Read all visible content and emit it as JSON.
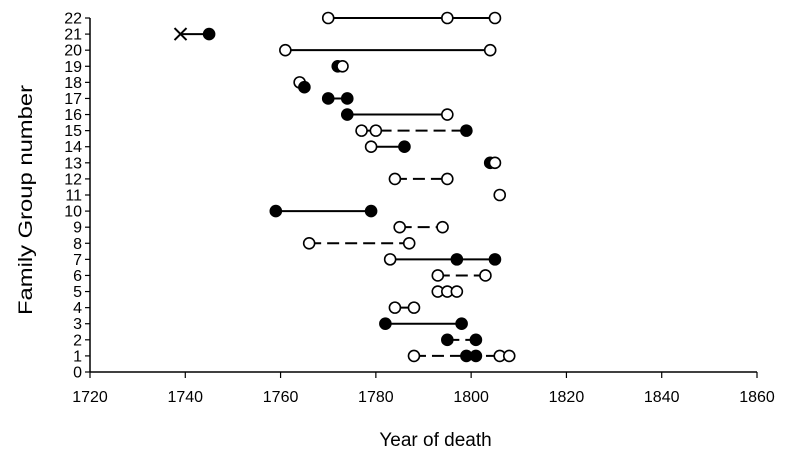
{
  "chart_data": {
    "type": "scatter",
    "xlabel": "Year of death",
    "ylabel": "Family Group number",
    "xlim": [
      1720,
      1860
    ],
    "ylim": [
      0,
      22
    ],
    "x_ticks": [
      1720,
      1740,
      1760,
      1780,
      1800,
      1820,
      1840,
      1860
    ],
    "y_ticks": [
      0,
      1,
      2,
      3,
      4,
      5,
      6,
      7,
      8,
      9,
      10,
      11,
      12,
      13,
      14,
      15,
      16,
      17,
      18,
      19,
      20,
      21,
      22
    ],
    "grid": false,
    "groups": [
      {
        "group": 22,
        "line": "solid",
        "points": [
          {
            "x": 1770,
            "m": "open"
          },
          {
            "x": 1795,
            "m": "open"
          },
          {
            "x": 1805,
            "m": "open"
          }
        ]
      },
      {
        "group": 21,
        "line": "solid",
        "points": [
          {
            "x": 1739,
            "m": "cross"
          },
          {
            "x": 1745,
            "m": "filled"
          }
        ]
      },
      {
        "group": 20,
        "line": "solid",
        "points": [
          {
            "x": 1761,
            "m": "open"
          },
          {
            "x": 1804,
            "m": "open"
          }
        ]
      },
      {
        "group": 19,
        "line": "solid",
        "points": [
          {
            "x": 1772,
            "m": "filled"
          },
          {
            "x": 1773,
            "m": "open"
          }
        ]
      },
      {
        "group": 18,
        "line": "solid",
        "points": [
          {
            "x": 1764,
            "m": "open"
          }
        ]
      },
      {
        "group": 17.7,
        "line": "none",
        "points": [
          {
            "x": 1765,
            "m": "filled"
          }
        ]
      },
      {
        "group": 17,
        "line": "solid",
        "points": [
          {
            "x": 1770,
            "m": "filled"
          },
          {
            "x": 1774,
            "m": "filled"
          }
        ]
      },
      {
        "group": 16,
        "line": "solid",
        "points": [
          {
            "x": 1774,
            "m": "filled"
          },
          {
            "x": 1795,
            "m": "open"
          }
        ]
      },
      {
        "group": 15,
        "line": "dashed",
        "points": [
          {
            "x": 1777,
            "m": "open"
          },
          {
            "x": 1780,
            "m": "open"
          },
          {
            "x": 1799,
            "m": "filled"
          }
        ]
      },
      {
        "group": 14,
        "line": "solid",
        "points": [
          {
            "x": 1779,
            "m": "open"
          },
          {
            "x": 1786,
            "m": "filled"
          }
        ]
      },
      {
        "group": 13,
        "line": "solid",
        "points": [
          {
            "x": 1804,
            "m": "filled"
          },
          {
            "x": 1805,
            "m": "open"
          }
        ]
      },
      {
        "group": 12,
        "line": "dashed",
        "points": [
          {
            "x": 1784,
            "m": "open"
          },
          {
            "x": 1795,
            "m": "open"
          }
        ]
      },
      {
        "group": 11,
        "line": "none",
        "points": [
          {
            "x": 1806,
            "m": "open"
          }
        ]
      },
      {
        "group": 10,
        "line": "solid",
        "points": [
          {
            "x": 1759,
            "m": "filled"
          },
          {
            "x": 1779,
            "m": "filled"
          }
        ]
      },
      {
        "group": 9,
        "line": "dashed",
        "points": [
          {
            "x": 1785,
            "m": "open"
          },
          {
            "x": 1794,
            "m": "open"
          }
        ]
      },
      {
        "group": 8,
        "line": "dashed",
        "points": [
          {
            "x": 1766,
            "m": "open"
          },
          {
            "x": 1787,
            "m": "open"
          }
        ]
      },
      {
        "group": 7,
        "line": "solid",
        "points": [
          {
            "x": 1783,
            "m": "open"
          },
          {
            "x": 1797,
            "m": "filled"
          },
          {
            "x": 1805,
            "m": "filled"
          }
        ]
      },
      {
        "group": 6,
        "line": "dashed",
        "points": [
          {
            "x": 1793,
            "m": "open"
          },
          {
            "x": 1803,
            "m": "open"
          }
        ]
      },
      {
        "group": 5,
        "line": "none",
        "points": [
          {
            "x": 1793,
            "m": "open"
          },
          {
            "x": 1795,
            "m": "open"
          },
          {
            "x": 1797,
            "m": "open"
          }
        ]
      },
      {
        "group": 4,
        "line": "solid",
        "points": [
          {
            "x": 1784,
            "m": "open"
          },
          {
            "x": 1788,
            "m": "open"
          }
        ]
      },
      {
        "group": 3,
        "line": "solid",
        "points": [
          {
            "x": 1782,
            "m": "filled"
          },
          {
            "x": 1798,
            "m": "filled"
          }
        ]
      },
      {
        "group": 2,
        "line": "dashed",
        "points": [
          {
            "x": 1795,
            "m": "filled"
          },
          {
            "x": 1801,
            "m": "filled"
          }
        ]
      },
      {
        "group": 1,
        "line": "dashed",
        "points": [
          {
            "x": 1788,
            "m": "open"
          },
          {
            "x": 1799,
            "m": "filled"
          },
          {
            "x": 1801,
            "m": "filled"
          },
          {
            "x": 1806,
            "m": "open"
          },
          {
            "x": 1808,
            "m": "open"
          }
        ]
      }
    ]
  }
}
